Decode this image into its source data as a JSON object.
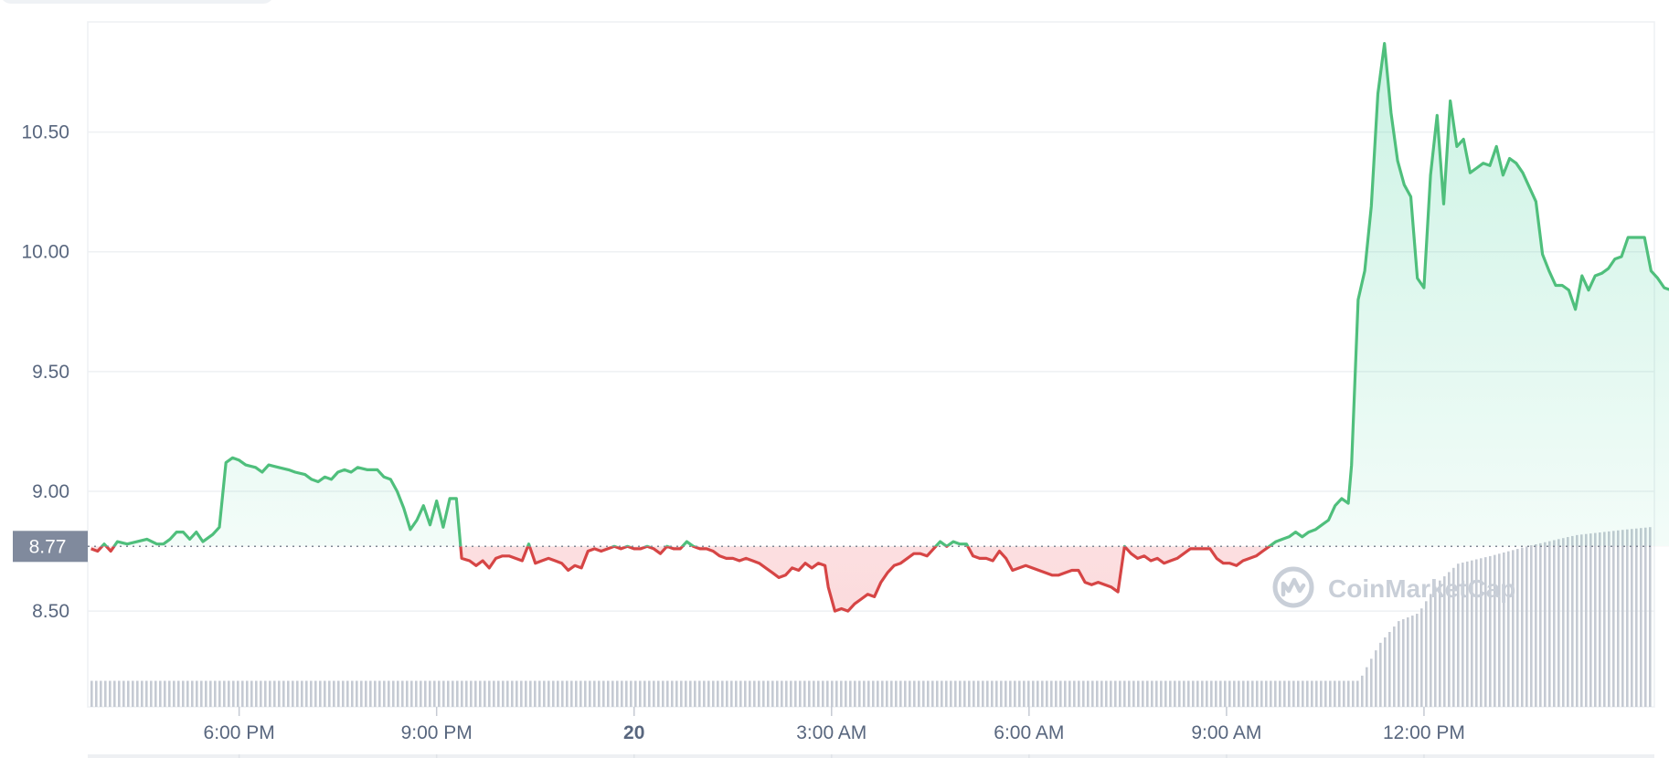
{
  "chart_data": {
    "type": "area",
    "title": "",
    "xlabel": "",
    "ylabel": "",
    "ylim": [
      8.1,
      10.96
    ],
    "y_ticks": [
      {
        "value": 10.5,
        "label": "10.50"
      },
      {
        "value": 10.0,
        "label": "10.00"
      },
      {
        "value": 9.5,
        "label": "9.50"
      },
      {
        "value": 9.0,
        "label": "9.00"
      },
      {
        "value": 8.5,
        "label": "8.50"
      }
    ],
    "x_ticks": [
      {
        "hour": 18,
        "label": "6:00 PM",
        "bold": false
      },
      {
        "hour": 21,
        "label": "9:00 PM",
        "bold": false
      },
      {
        "hour": 24,
        "label": "20",
        "bold": true
      },
      {
        "hour": 27,
        "label": "3:00 AM",
        "bold": false
      },
      {
        "hour": 30,
        "label": "6:00 AM",
        "bold": false
      },
      {
        "hour": 33,
        "label": "9:00 AM",
        "bold": false
      },
      {
        "hour": 36,
        "label": "12:00 PM",
        "bold": false
      }
    ],
    "x_range_hours": [
      15.7,
      39.5
    ],
    "baseline": {
      "value": 8.77,
      "label": "8.77"
    },
    "colors": {
      "up": "#16c784",
      "up_line": "#4fbf7c",
      "down": "#ea3943",
      "down_line": "#d64545",
      "volume": "#c5cad3",
      "grid": "#eef0f3",
      "badge": "#808a9d"
    },
    "series": [
      {
        "values": [
          [
            15.75,
            8.76
          ],
          [
            15.85,
            8.75
          ],
          [
            15.95,
            8.78
          ],
          [
            16.05,
            8.75
          ],
          [
            16.15,
            8.79
          ],
          [
            16.3,
            8.78
          ],
          [
            16.45,
            8.79
          ],
          [
            16.6,
            8.8
          ],
          [
            16.75,
            8.78
          ],
          [
            16.85,
            8.78
          ],
          [
            16.95,
            8.8
          ],
          [
            17.05,
            8.83
          ],
          [
            17.15,
            8.83
          ],
          [
            17.25,
            8.8
          ],
          [
            17.35,
            8.83
          ],
          [
            17.45,
            8.79
          ],
          [
            17.6,
            8.82
          ],
          [
            17.7,
            8.85
          ],
          [
            17.8,
            9.12
          ],
          [
            17.9,
            9.14
          ],
          [
            18.0,
            9.13
          ],
          [
            18.1,
            9.11
          ],
          [
            18.25,
            9.1
          ],
          [
            18.35,
            9.08
          ],
          [
            18.45,
            9.11
          ],
          [
            18.6,
            9.1
          ],
          [
            18.75,
            9.09
          ],
          [
            18.85,
            9.08
          ],
          [
            19.0,
            9.07
          ],
          [
            19.1,
            9.05
          ],
          [
            19.2,
            9.04
          ],
          [
            19.3,
            9.06
          ],
          [
            19.4,
            9.05
          ],
          [
            19.5,
            9.08
          ],
          [
            19.6,
            9.09
          ],
          [
            19.7,
            9.08
          ],
          [
            19.8,
            9.1
          ],
          [
            19.95,
            9.09
          ],
          [
            20.1,
            9.09
          ],
          [
            20.2,
            9.06
          ],
          [
            20.3,
            9.05
          ],
          [
            20.4,
            9.0
          ],
          [
            20.5,
            8.93
          ],
          [
            20.6,
            8.84
          ],
          [
            20.7,
            8.88
          ],
          [
            20.8,
            8.94
          ],
          [
            20.9,
            8.86
          ],
          [
            21.0,
            8.96
          ],
          [
            21.1,
            8.85
          ],
          [
            21.2,
            8.97
          ],
          [
            21.3,
            8.97
          ],
          [
            21.38,
            8.72
          ],
          [
            21.5,
            8.71
          ],
          [
            21.6,
            8.69
          ],
          [
            21.7,
            8.71
          ],
          [
            21.8,
            8.68
          ],
          [
            21.9,
            8.72
          ],
          [
            22.0,
            8.73
          ],
          [
            22.1,
            8.73
          ],
          [
            22.2,
            8.72
          ],
          [
            22.3,
            8.71
          ],
          [
            22.4,
            8.78
          ],
          [
            22.5,
            8.7
          ],
          [
            22.6,
            8.71
          ],
          [
            22.7,
            8.72
          ],
          [
            22.8,
            8.71
          ],
          [
            22.9,
            8.7
          ],
          [
            23.0,
            8.67
          ],
          [
            23.1,
            8.69
          ],
          [
            23.2,
            8.68
          ],
          [
            23.3,
            8.75
          ],
          [
            23.4,
            8.76
          ],
          [
            23.5,
            8.75
          ],
          [
            23.6,
            8.76
          ],
          [
            23.7,
            8.77
          ],
          [
            23.8,
            8.76
          ],
          [
            23.9,
            8.77
          ],
          [
            24.0,
            8.76
          ],
          [
            24.1,
            8.76
          ],
          [
            24.2,
            8.77
          ],
          [
            24.3,
            8.76
          ],
          [
            24.4,
            8.74
          ],
          [
            24.5,
            8.77
          ],
          [
            24.6,
            8.76
          ],
          [
            24.7,
            8.76
          ],
          [
            24.8,
            8.79
          ],
          [
            24.9,
            8.77
          ],
          [
            25.0,
            8.76
          ],
          [
            25.1,
            8.76
          ],
          [
            25.2,
            8.75
          ],
          [
            25.3,
            8.73
          ],
          [
            25.4,
            8.72
          ],
          [
            25.5,
            8.72
          ],
          [
            25.6,
            8.71
          ],
          [
            25.7,
            8.72
          ],
          [
            25.8,
            8.71
          ],
          [
            25.9,
            8.7
          ],
          [
            26.0,
            8.68
          ],
          [
            26.1,
            8.66
          ],
          [
            26.2,
            8.64
          ],
          [
            26.3,
            8.65
          ],
          [
            26.4,
            8.68
          ],
          [
            26.5,
            8.67
          ],
          [
            26.6,
            8.7
          ],
          [
            26.7,
            8.68
          ],
          [
            26.8,
            8.7
          ],
          [
            26.9,
            8.69
          ],
          [
            26.95,
            8.6
          ],
          [
            27.05,
            8.5
          ],
          [
            27.15,
            8.51
          ],
          [
            27.25,
            8.5
          ],
          [
            27.35,
            8.53
          ],
          [
            27.45,
            8.55
          ],
          [
            27.55,
            8.57
          ],
          [
            27.65,
            8.56
          ],
          [
            27.75,
            8.62
          ],
          [
            27.85,
            8.66
          ],
          [
            27.95,
            8.69
          ],
          [
            28.05,
            8.7
          ],
          [
            28.15,
            8.72
          ],
          [
            28.25,
            8.74
          ],
          [
            28.35,
            8.74
          ],
          [
            28.45,
            8.73
          ],
          [
            28.55,
            8.76
          ],
          [
            28.65,
            8.79
          ],
          [
            28.75,
            8.77
          ],
          [
            28.85,
            8.79
          ],
          [
            28.95,
            8.78
          ],
          [
            29.05,
            8.78
          ],
          [
            29.15,
            8.73
          ],
          [
            29.25,
            8.72
          ],
          [
            29.35,
            8.72
          ],
          [
            29.45,
            8.71
          ],
          [
            29.55,
            8.75
          ],
          [
            29.65,
            8.72
          ],
          [
            29.75,
            8.67
          ],
          [
            29.85,
            8.68
          ],
          [
            29.95,
            8.69
          ],
          [
            30.05,
            8.68
          ],
          [
            30.15,
            8.67
          ],
          [
            30.25,
            8.66
          ],
          [
            30.35,
            8.65
          ],
          [
            30.45,
            8.65
          ],
          [
            30.55,
            8.66
          ],
          [
            30.65,
            8.67
          ],
          [
            30.75,
            8.67
          ],
          [
            30.85,
            8.62
          ],
          [
            30.95,
            8.61
          ],
          [
            31.05,
            8.62
          ],
          [
            31.15,
            8.61
          ],
          [
            31.25,
            8.6
          ],
          [
            31.35,
            8.58
          ],
          [
            31.45,
            8.77
          ],
          [
            31.55,
            8.74
          ],
          [
            31.65,
            8.72
          ],
          [
            31.75,
            8.73
          ],
          [
            31.85,
            8.71
          ],
          [
            31.95,
            8.72
          ],
          [
            32.05,
            8.7
          ],
          [
            32.15,
            8.71
          ],
          [
            32.25,
            8.72
          ],
          [
            32.35,
            8.74
          ],
          [
            32.45,
            8.76
          ],
          [
            32.55,
            8.76
          ],
          [
            32.65,
            8.76
          ],
          [
            32.75,
            8.76
          ],
          [
            32.85,
            8.72
          ],
          [
            32.95,
            8.7
          ],
          [
            33.05,
            8.7
          ],
          [
            33.15,
            8.69
          ],
          [
            33.25,
            8.71
          ],
          [
            33.35,
            8.72
          ],
          [
            33.45,
            8.73
          ],
          [
            33.55,
            8.75
          ],
          [
            33.65,
            8.77
          ],
          [
            33.75,
            8.79
          ],
          [
            33.85,
            8.8
          ],
          [
            33.95,
            8.81
          ],
          [
            34.05,
            8.83
          ],
          [
            34.15,
            8.81
          ],
          [
            34.25,
            8.83
          ],
          [
            34.35,
            8.84
          ],
          [
            34.45,
            8.86
          ],
          [
            34.55,
            8.88
          ],
          [
            34.65,
            8.94
          ],
          [
            34.75,
            8.97
          ],
          [
            34.85,
            8.95
          ],
          [
            34.9,
            9.11
          ],
          [
            35.0,
            9.8
          ],
          [
            35.1,
            9.92
          ],
          [
            35.2,
            10.19
          ],
          [
            35.3,
            10.66
          ],
          [
            35.4,
            10.87
          ],
          [
            35.5,
            10.58
          ],
          [
            35.6,
            10.38
          ],
          [
            35.7,
            10.28
          ],
          [
            35.8,
            10.23
          ],
          [
            35.9,
            9.89
          ],
          [
            36.0,
            9.85
          ],
          [
            36.1,
            10.32
          ],
          [
            36.2,
            10.57
          ],
          [
            36.3,
            10.2
          ],
          [
            36.4,
            10.63
          ],
          [
            36.5,
            10.44
          ],
          [
            36.6,
            10.47
          ],
          [
            36.7,
            10.33
          ],
          [
            36.8,
            10.35
          ],
          [
            36.9,
            10.37
          ],
          [
            37.0,
            10.36
          ],
          [
            37.1,
            10.44
          ],
          [
            37.2,
            10.32
          ],
          [
            37.3,
            10.39
          ],
          [
            37.4,
            10.37
          ],
          [
            37.5,
            10.33
          ],
          [
            37.6,
            10.27
          ],
          [
            37.7,
            10.21
          ],
          [
            37.8,
            9.99
          ],
          [
            37.9,
            9.92
          ],
          [
            38.0,
            9.86
          ],
          [
            38.1,
            9.86
          ],
          [
            38.2,
            9.84
          ],
          [
            38.3,
            9.76
          ],
          [
            38.4,
            9.9
          ],
          [
            38.5,
            9.84
          ],
          [
            38.6,
            9.9
          ],
          [
            38.7,
            9.91
          ],
          [
            38.8,
            9.93
          ],
          [
            38.9,
            9.97
          ],
          [
            39.0,
            9.98
          ],
          [
            39.1,
            10.06
          ],
          [
            39.2,
            10.06
          ],
          [
            39.35,
            10.06
          ],
          [
            39.45,
            9.92
          ],
          [
            39.55,
            9.89
          ],
          [
            39.65,
            9.85
          ],
          [
            39.75,
            9.84
          ],
          [
            39.8,
            9.89
          ]
        ]
      }
    ],
    "volume_profile": [
      [
        15.7,
        0.1
      ],
      [
        35.0,
        0.1
      ],
      [
        35.3,
        0.24
      ],
      [
        35.6,
        0.33
      ],
      [
        35.9,
        0.36
      ],
      [
        36.2,
        0.48
      ],
      [
        36.5,
        0.55
      ],
      [
        37.0,
        0.58
      ],
      [
        37.6,
        0.62
      ],
      [
        38.3,
        0.66
      ],
      [
        39.0,
        0.68
      ],
      [
        39.8,
        0.7
      ]
    ]
  },
  "watermark": {
    "text": "CoinMarketCap",
    "icon": "coinmarketcap-logo-icon"
  }
}
